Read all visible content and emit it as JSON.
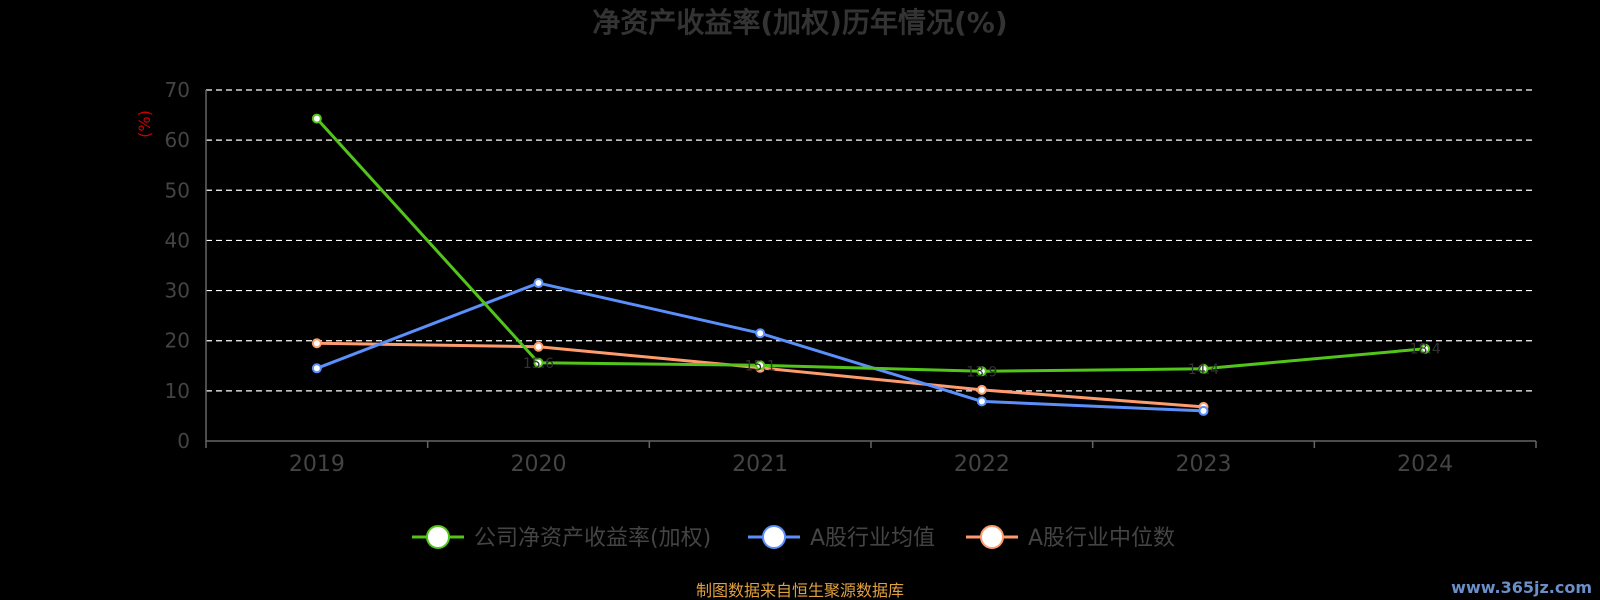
{
  "chart_data": {
    "type": "line",
    "title": "净资产收益率(加权)历年情况(%)",
    "unit_label": "(%)",
    "categories": [
      "2019",
      "2020",
      "2021",
      "2022",
      "2023",
      "2024"
    ],
    "ylim": [
      0,
      70
    ],
    "y_ticks": [
      0,
      10,
      20,
      30,
      40,
      50,
      60,
      70
    ],
    "grid": true,
    "legend_position": "bottom",
    "series": [
      {
        "name": "公司净资产收益率(加权)",
        "color": "#52c41a",
        "values": [
          64.3,
          15.6,
          15.1,
          13.9,
          14.4,
          18.4
        ],
        "labels": [
          "",
          "15.6",
          "15.1",
          "13.9",
          "14.4",
          "18.4"
        ]
      },
      {
        "name": "A股行业均值",
        "color": "#5b8ff9",
        "values": [
          14.5,
          31.5,
          21.5,
          7.9,
          6.0,
          null
        ],
        "labels": []
      },
      {
        "name": "A股行业中位数",
        "color": "#ff9c6e",
        "values": [
          19.5,
          18.8,
          14.6,
          10.2,
          6.8,
          null
        ],
        "labels": []
      }
    ]
  },
  "footer": {
    "source": "制图数据来自恒生聚源数据库",
    "watermark": "www.365jz.com"
  }
}
